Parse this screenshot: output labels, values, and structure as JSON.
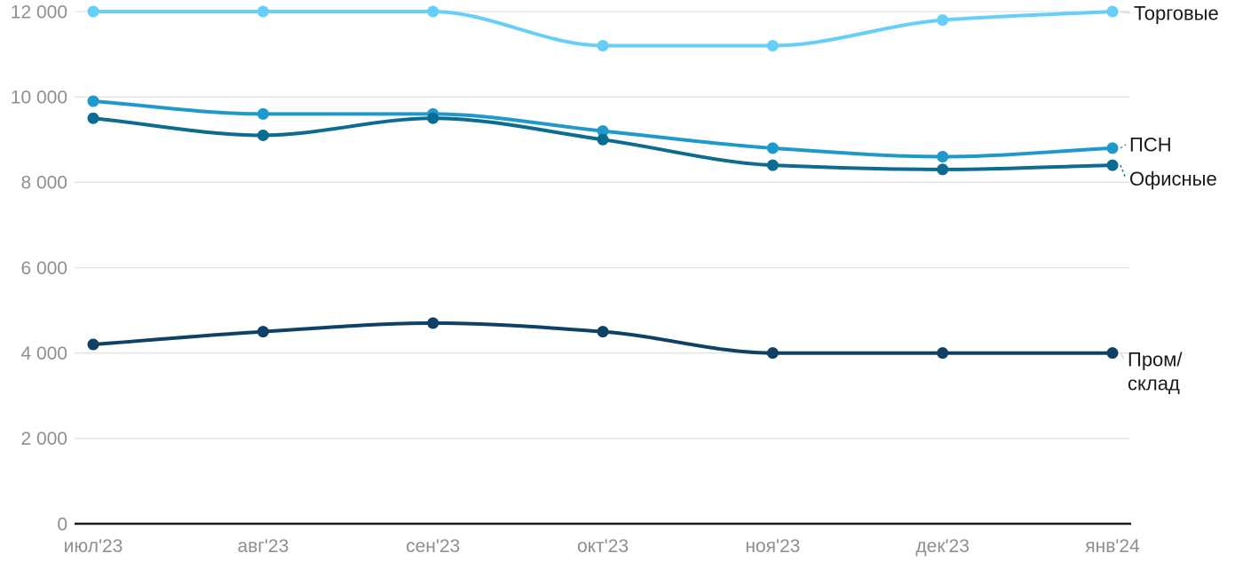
{
  "chart_data": {
    "type": "line",
    "title": "",
    "categories": [
      "июл'23",
      "авг'23",
      "сен'23",
      "окт'23",
      "ноя'23",
      "дек'23",
      "янв'24"
    ],
    "series": [
      {
        "name": "Торговые",
        "label_lines": [
          "Торговые"
        ],
        "color": "#66cff7",
        "values": [
          12000,
          12000,
          12000,
          11200,
          11200,
          11800,
          12000
        ]
      },
      {
        "name": "ПСН",
        "label_lines": [
          "ПСН"
        ],
        "color": "#1f99cb",
        "values": [
          9900,
          9600,
          9600,
          9200,
          8800,
          8600,
          8800
        ]
      },
      {
        "name": "Офисные",
        "label_lines": [
          "Офисные"
        ],
        "color": "#0b6b90",
        "values": [
          9500,
          9100,
          9500,
          9000,
          8400,
          8300,
          8400
        ]
      },
      {
        "name": "Пром/склад",
        "label_lines": [
          "Пром/",
          "склад"
        ],
        "color": "#0f4066",
        "values": [
          4200,
          4500,
          4700,
          4500,
          4000,
          4000,
          4000
        ]
      }
    ],
    "y_axis": {
      "min": 0,
      "max": 12000,
      "ticks": [
        0,
        2000,
        4000,
        6000,
        8000,
        10000,
        12000
      ],
      "tick_labels": [
        "0",
        "2 000",
        "4 000",
        "6 000",
        "8 000",
        "10 000",
        "12 000"
      ],
      "grid": true
    },
    "x_axis": {
      "labels": [
        "июл'23",
        "авг'23",
        "сен'23",
        "окт'23",
        "ноя'23",
        "дек'23",
        "янв'24"
      ]
    },
    "legend_position": "right-end-of-lines",
    "colors": {
      "grid_line": "#e3e3e3",
      "axis_line": "#1a1a1a",
      "tick_text": "#8f8f8f",
      "series_label_text": "#1a1a1a",
      "connector": "#d9d9d9",
      "background": "#ffffff"
    }
  }
}
